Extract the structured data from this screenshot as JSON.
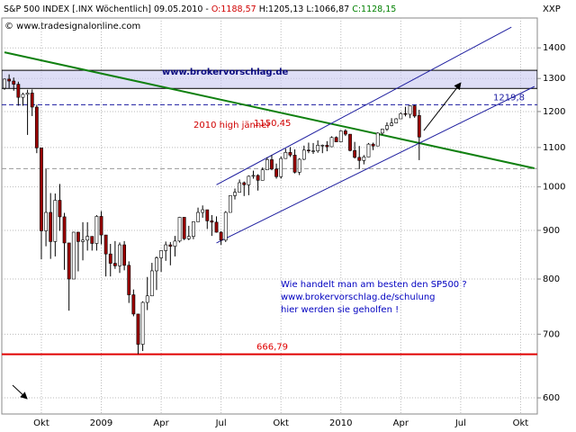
{
  "header": {
    "title": "S&P 500 INDEX [.INX Wöchentlich] 09.05.2010 -",
    "open": "O:1188,57",
    "high": "H:1205,13",
    "low": "L:1066,87",
    "close": "C:1128,15",
    "copyright": "© www.tradesignalonline.com",
    "symbol": "XXP"
  },
  "chart_data": {
    "type": "candlestick",
    "title": "www.brokervorschlag.de",
    "text_block": [
      "Wie handelt man am besten den SP500 ?",
      "www.brokervorschlag.de/schulung",
      "hier werden sie geholfen !"
    ],
    "annotations": [
      "2010 high jänner",
      "1150,45"
    ],
    "log_scale": true,
    "grid": true,
    "ylim": [
      577,
      1505
    ],
    "yticks": [
      600,
      700,
      800,
      900,
      1000,
      1100,
      1200,
      1300,
      1400
    ],
    "categories": [
      null,
      null,
      null,
      null,
      null,
      null,
      null,
      null,
      "Okt",
      null,
      null,
      null,
      null,
      null,
      null,
      null,
      null,
      null,
      null,
      null,
      null,
      "2009",
      null,
      null,
      null,
      null,
      null,
      null,
      null,
      null,
      null,
      null,
      null,
      null,
      "Apr",
      null,
      null,
      null,
      null,
      null,
      null,
      null,
      null,
      null,
      null,
      null,
      null,
      "Jul",
      null,
      null,
      null,
      null,
      null,
      null,
      null,
      null,
      null,
      null,
      null,
      null,
      "Okt",
      null,
      null,
      null,
      null,
      null,
      null,
      null,
      null,
      null,
      null,
      null,
      null,
      "2010",
      null,
      null,
      null,
      null,
      null,
      null,
      null,
      null,
      null,
      null,
      null,
      null,
      "Apr",
      null,
      null,
      null,
      null,
      null,
      null,
      null,
      null,
      null,
      null,
      null,
      null,
      "Jul",
      null,
      null,
      null,
      null,
      null,
      null,
      null,
      null,
      null,
      null,
      null,
      null,
      "Okt",
      null,
      null,
      null
    ],
    "open": [
      1270,
      1298,
      1292,
      1282,
      1242,
      1251,
      1255,
      1213,
      1099,
      899,
      940,
      876,
      968,
      930,
      873,
      800,
      896,
      876,
      879,
      887,
      872,
      931,
      890,
      850,
      831,
      826,
      869,
      827,
      770,
      735,
      683,
      756,
      768,
      816,
      842,
      857,
      869,
      866,
      877,
      929,
      882,
      887,
      919,
      940,
      946,
      921,
      918,
      896,
      879,
      940,
      979,
      987,
      1010,
      1005,
      1026,
      1028,
      1016,
      1042,
      1068,
      1044,
      1025,
      1071,
      1087,
      1080,
      1036,
      1069,
      1093,
      1091,
      1091,
      1106,
      1106,
      1102,
      1127,
      1115,
      1145,
      1136,
      1092,
      1074,
      1066,
      1075,
      1109,
      1104,
      1139,
      1150,
      1160,
      1167,
      1179,
      1194,
      1192,
      1217,
      1188.57,
      null,
      null,
      null,
      null,
      null,
      null,
      null,
      null,
      null,
      null,
      null,
      null,
      null,
      null,
      null,
      null,
      null,
      null,
      null,
      null,
      null,
      null,
      null,
      null,
      null
    ],
    "high": [
      1300,
      1313,
      1303,
      1290,
      1256,
      1265,
      1266,
      1220,
      1099,
      1044,
      985,
      984,
      1007,
      939,
      873,
      897,
      897,
      918,
      918,
      887,
      934,
      943,
      890,
      871,
      877,
      874,
      877,
      835,
      780,
      735,
      758,
      804,
      832,
      845,
      857,
      876,
      875,
      888,
      930,
      925,
      910,
      920,
      951,
      956,
      946,
      934,
      931,
      898,
      943,
      979,
      996,
      1018,
      1013,
      1028,
      1040,
      1031,
      1048,
      1074,
      1080,
      1058,
      1076,
      1097,
      1101,
      1095,
      1072,
      1105,
      1113,
      1112,
      1119,
      1108,
      1117,
      1130,
      1130,
      1147,
      1150,
      1136,
      1115,
      1104,
      1080,
      1112,
      1113,
      1141,
      1151,
      1169,
      1181,
      1181,
      1198,
      1214,
      1218,
      1219,
      1205.13,
      null,
      null,
      null,
      null,
      null,
      null,
      null,
      null,
      null,
      null,
      null,
      null,
      null,
      null,
      null,
      null,
      null,
      null,
      null,
      null,
      null,
      null,
      null,
      null,
      null
    ],
    "low": [
      1265,
      1270,
      1262,
      1217,
      1217,
      1134,
      1187,
      1085,
      839,
      866,
      840,
      845,
      899,
      818,
      741,
      800,
      815,
      837,
      857,
      857,
      857,
      870,
      805,
      805,
      820,
      812,
      817,
      755,
      731,
      667,
      672,
      742,
      768,
      779,
      814,
      836,
      827,
      845,
      874,
      879,
      879,
      881,
      919,
      928,
      903,
      888,
      895,
      869,
      875,
      940,
      970,
      987,
      978,
      980,
      1020,
      991,
      1016,
      1042,
      1041,
      1020,
      1020,
      1070,
      1075,
      1033,
      1029,
      1067,
      1085,
      1083,
      1086,
      1085,
      1090,
      1102,
      1115,
      1115,
      1131,
      1090,
      1071,
      1044,
      1056,
      1075,
      1093,
      1104,
      1134,
      1145,
      1158,
      1166,
      1179,
      1186,
      1181,
      1182,
      1066.87,
      null,
      null,
      null,
      null,
      null,
      null,
      null,
      null,
      null,
      null,
      null,
      null,
      null,
      null,
      null,
      null,
      null,
      null,
      null,
      null,
      null,
      null,
      null,
      null,
      null
    ],
    "close": [
      1298,
      1292,
      1282,
      1242,
      1251,
      1255,
      1213,
      1099,
      899,
      940,
      876,
      968,
      930,
      873,
      800,
      896,
      876,
      879,
      887,
      872,
      931,
      890,
      850,
      831,
      826,
      869,
      827,
      770,
      735,
      683,
      756,
      768,
      816,
      842,
      857,
      869,
      866,
      877,
      929,
      882,
      887,
      919,
      940,
      946,
      921,
      918,
      896,
      879,
      940,
      979,
      987,
      1010,
      1005,
      1026,
      1028,
      1016,
      1042,
      1068,
      1044,
      1025,
      1071,
      1087,
      1080,
      1036,
      1069,
      1093,
      1091,
      1091,
      1106,
      1106,
      1102,
      1127,
      1115,
      1145,
      1136,
      1092,
      1074,
      1066,
      1075,
      1109,
      1104,
      1139,
      1150,
      1160,
      1167,
      1179,
      1194,
      1192,
      1217,
      1187,
      1128.15,
      null,
      null,
      null,
      null,
      null,
      null,
      null,
      null,
      null,
      null,
      null,
      null,
      null,
      null,
      null,
      null,
      null,
      null,
      null,
      null,
      null,
      null,
      null,
      null,
      null
    ],
    "up_color": "#ffffff",
    "down_color": "#990000",
    "band": {
      "from": 1269,
      "to": 1326,
      "color": "#c8c8f0"
    },
    "levels": [
      {
        "value": 666.79,
        "label": "666,79",
        "color": "#e00000"
      },
      {
        "value": 1219.8,
        "label": "1219,8",
        "color": "#1a1aa0"
      },
      {
        "value": 1045,
        "color": "#999999"
      }
    ],
    "lines": [
      {
        "from": [
          0,
          1385
        ],
        "to": [
          115,
          1046
        ],
        "color": "#108010"
      },
      {
        "from": [
          46,
          1005
        ],
        "to": [
          110,
          1472
        ],
        "color": "#2020a0"
      },
      {
        "from": [
          46,
          873
        ],
        "to": [
          115,
          1275
        ],
        "color": "#2020a0"
      },
      {
        "from": [
          91,
          1146
        ],
        "to": [
          99,
          1286
        ],
        "color": "#000000"
      }
    ]
  }
}
